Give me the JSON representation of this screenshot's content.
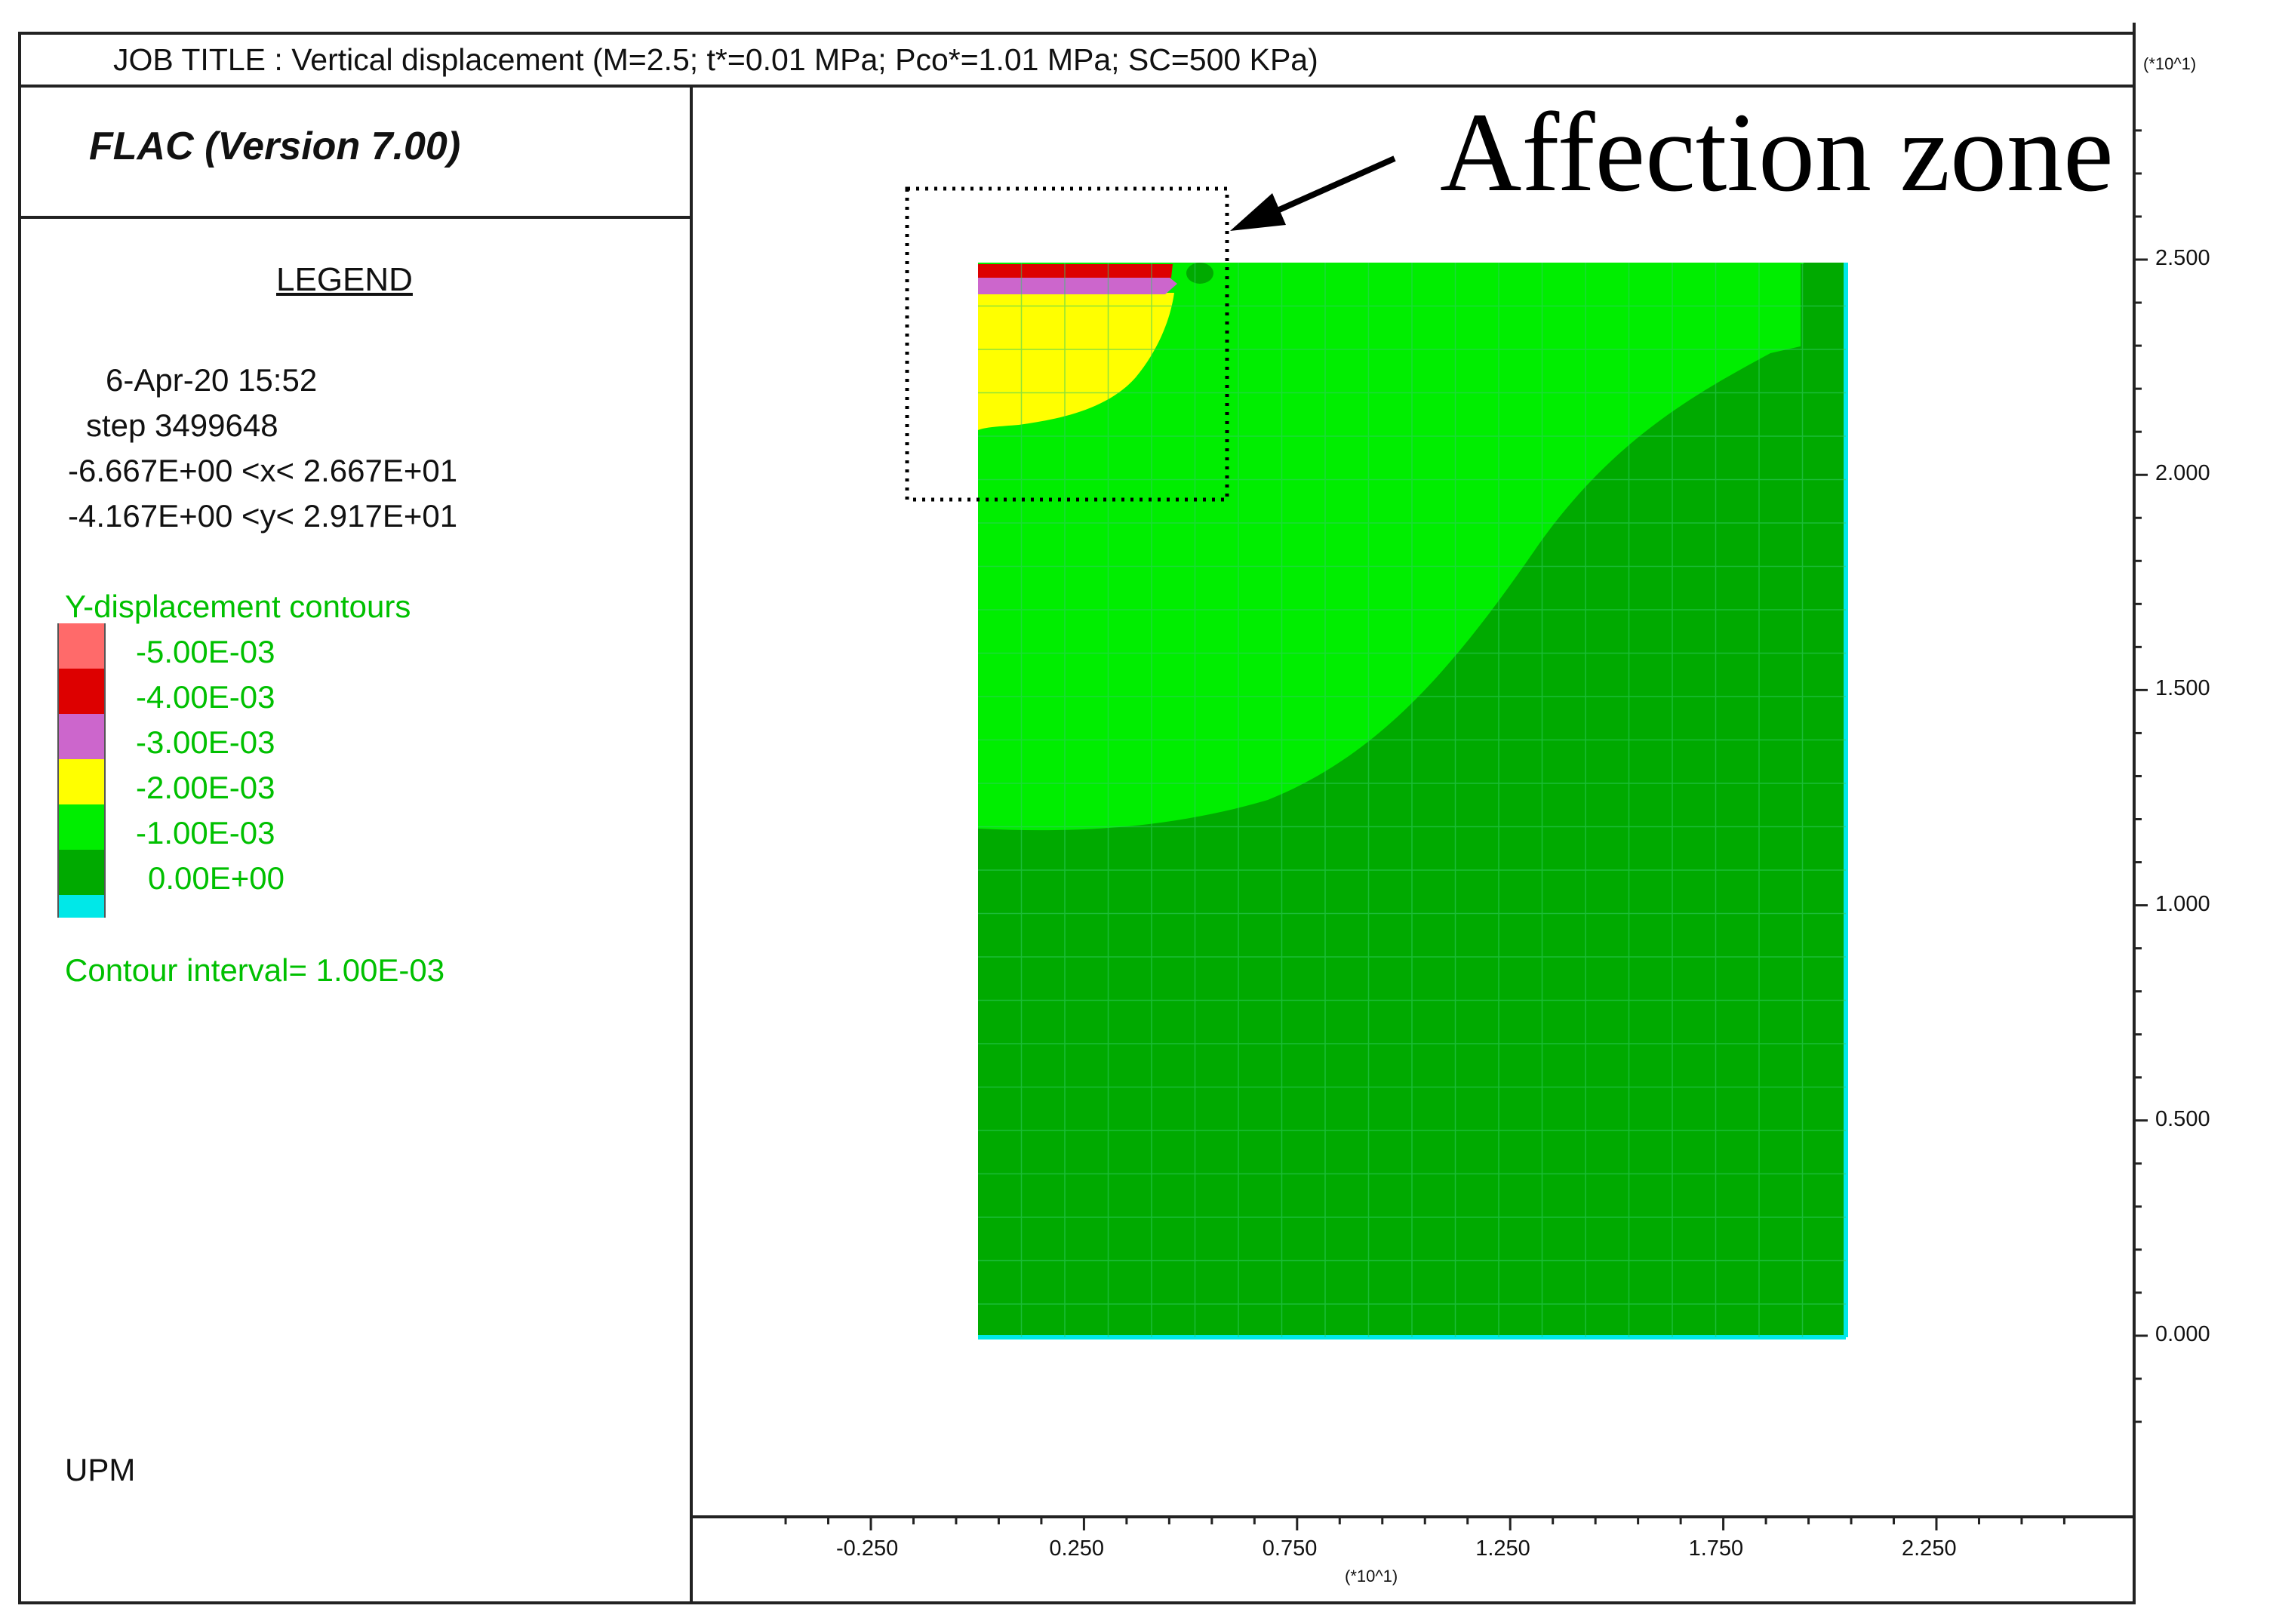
{
  "header": {
    "job_title": "JOB TITLE : Vertical displacement (M=2.5; t*=0.01 MPa; Pco*=1.01 MPa; SC=500 KPa)"
  },
  "panel": {
    "software": "FLAC (Version 7.00)",
    "legend_heading": "LEGEND",
    "date": "6-Apr-20  15:52",
    "step": "step   3499648",
    "x_range": "-6.667E+00 <x<  2.667E+01",
    "y_range": "-4.167E+00 <y<  2.917E+01",
    "contour_title": "Y-displacement contours",
    "contour_interval": "Contour interval=  1.00E-03",
    "institution": "UPM"
  },
  "legend": [
    {
      "label": "-5.00E-03",
      "color": "#ff6a6a"
    },
    {
      "label": "-4.00E-03",
      "color": "#dd0000"
    },
    {
      "label": "-3.00E-03",
      "color": "#cc66cc"
    },
    {
      "label": "-2.00E-03",
      "color": "#ffff00"
    },
    {
      "label": "-1.00E-03",
      "color": "#00ee00"
    },
    {
      "label": "0.00E+00",
      "color": "#00aa00"
    },
    {
      "label": "",
      "color": "#00e8e8"
    }
  ],
  "annotation": {
    "label": "Affection zone"
  },
  "axes": {
    "y_exponent": "(*10^1)",
    "x_exponent": "(*10^1)",
    "y_ticks": [
      "2.500",
      "2.000",
      "1.500",
      "1.000",
      "0.500",
      "0.000"
    ],
    "x_ticks": [
      "-0.250",
      "0.250",
      "0.750",
      "1.250",
      "1.750",
      "2.250"
    ]
  }
}
